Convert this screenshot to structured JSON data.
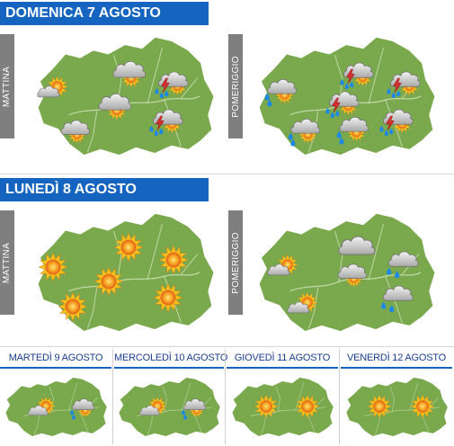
{
  "days": [
    {
      "title": "DOMENICA 7 AGOSTO",
      "panels": [
        {
          "period": "MATTINA",
          "icons": [
            "sun-cloud-icon",
            "cloud-sun-icon",
            "cloud-sun-icon",
            "cloud-sun-icon",
            "storm-rain-icon",
            "storm-rain-icon"
          ]
        },
        {
          "period": "POMERIGGIO",
          "icons": [
            "rain-sun-icon",
            "storm-rain-icon",
            "storm-rain-icon",
            "storm-rain-icon",
            "rain-sun-icon",
            "rain-sun-icon",
            "storm-rain-icon"
          ]
        }
      ]
    },
    {
      "title": "LUNEDÌ 8 AGOSTO",
      "panels": [
        {
          "period": "MATTINA",
          "icons": [
            "sun-icon",
            "sun-icon",
            "sun-icon",
            "sun-icon",
            "sun-icon",
            "sun-icon"
          ]
        },
        {
          "period": "POMERIGGIO",
          "icons": [
            "sun-cloud-icon",
            "cloud-icon",
            "cloud-sun-icon",
            "rain-cloud-icon",
            "sun-cloud-icon",
            "rain-cloud-icon"
          ]
        }
      ]
    }
  ],
  "small_days": [
    {
      "title": "MARTEDÌ 9 AGOSTO",
      "icons": [
        "sun-cloud-icon",
        "rain-sun-icon"
      ]
    },
    {
      "title": "MERCOLEDÌ 10 AGOSTO",
      "icons": [
        "sun-cloud-icon",
        "rain-sun-icon"
      ]
    },
    {
      "title": "GIOVEDÌ 11 AGOSTO",
      "icons": [
        "sun-icon",
        "sun-icon"
      ]
    },
    {
      "title": "VENERDÌ 12 AGOSTO",
      "icons": [
        "sun-icon",
        "sun-icon"
      ]
    }
  ],
  "colors": {
    "header_blue": "#1565c0",
    "map_green": "#7aa94d",
    "map_border": "#ffffff",
    "tab_grey": "#7f7f7f",
    "sun_yellow": "#f7c21a",
    "sun_orange": "#e8711a",
    "cloud_grey": "#d2d2d2",
    "rain_blue": "#1e88e5",
    "lightning_red": "#d32f2f"
  }
}
